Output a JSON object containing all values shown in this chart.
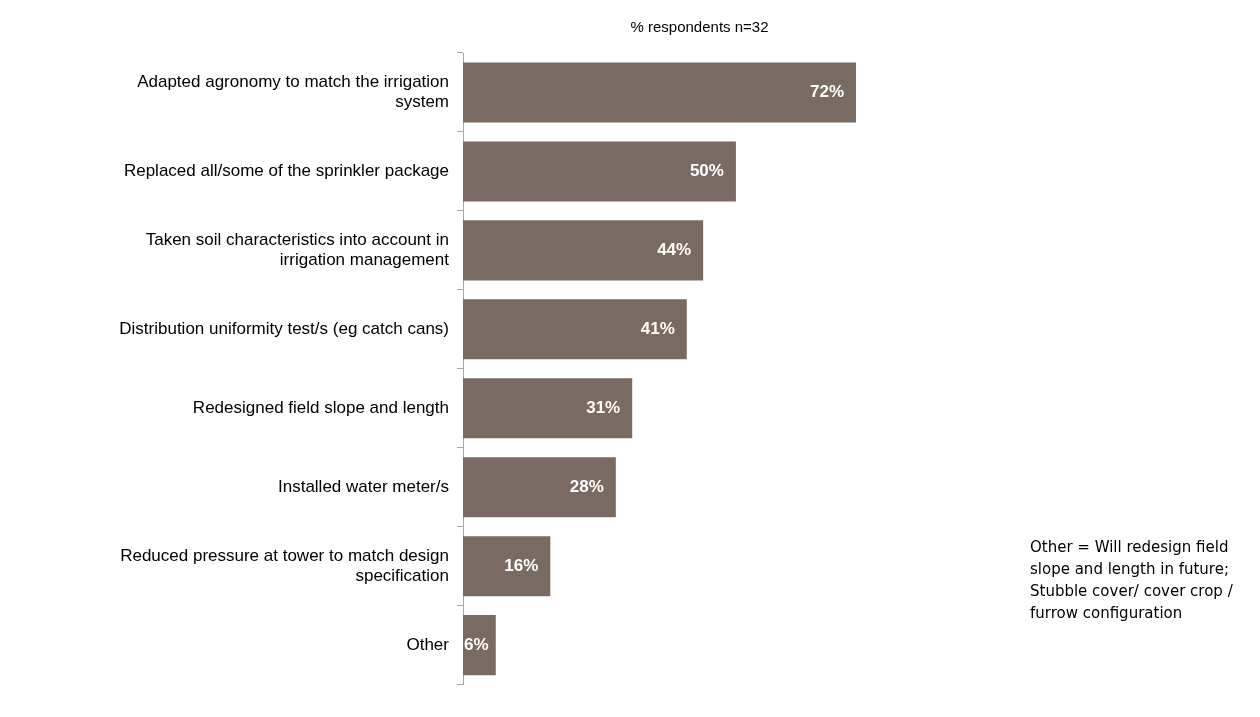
{
  "chart_data": {
    "type": "bar",
    "orientation": "horizontal",
    "title": "% respondents n=32",
    "categories": [
      "Adapted agronomy to match the irrigation system",
      "Replaced all/some of the sprinkler package",
      "Taken soil characteristics into account in irrigation management",
      "Distribution uniformity test/s (eg catch cans)",
      "Redesigned field slope and length",
      "Installed water meter/s",
      "Reduced pressure at tower to match design specification",
      "Other"
    ],
    "values": [
      72,
      50,
      44,
      41,
      31,
      28,
      16,
      6
    ],
    "value_labels": [
      "72%",
      "50%",
      "44%",
      "41%",
      "31%",
      "28%",
      "16%",
      "6%"
    ],
    "color": "#7a6b62",
    "annotations": [
      "Other = Will redesign field slope and length in future; Stubble cover/ cover crop / furrow configuration"
    ]
  }
}
